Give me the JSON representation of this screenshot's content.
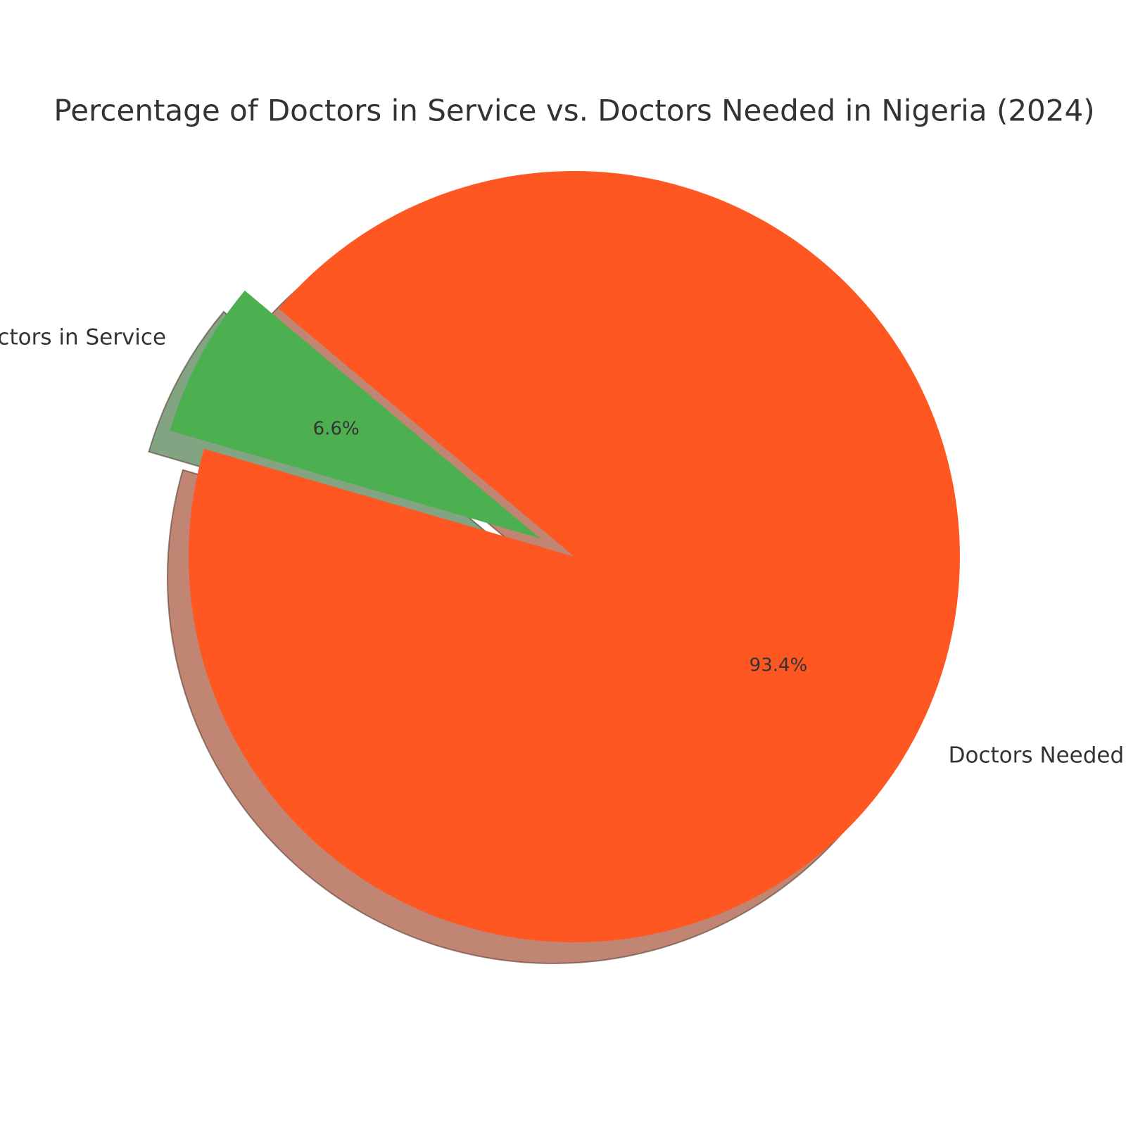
{
  "chart_data": {
    "type": "pie",
    "title": "Percentage of Doctors in Service vs. Doctors Needed in Nigeria (2024)",
    "categories": [
      "Doctors in Service",
      "Doctors Needed"
    ],
    "values": [
      6.6,
      93.4
    ],
    "value_labels": [
      "6.6%",
      "93.4%"
    ],
    "colors": [
      "#4caf50",
      "#ff5722"
    ],
    "explode": [
      0.1,
      0
    ],
    "shadow": true
  }
}
